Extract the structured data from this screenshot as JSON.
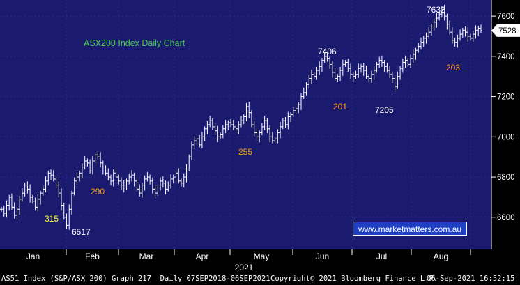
{
  "chart_data": {
    "type": "candlestick",
    "title": "ASX200 Index Daily Chart",
    "x_axis": {
      "months": [
        "Jan",
        "Feb",
        "Mar",
        "Apr",
        "May",
        "Jun",
        "Jul",
        "Aug"
      ],
      "year": "2021"
    },
    "y_axis": {
      "ticks": [
        6600,
        6800,
        7000,
        7200,
        7400,
        7600
      ],
      "range": [
        6440,
        7680
      ],
      "side": "right"
    },
    "last_price": "7528",
    "close_series": [
      6640,
      6620,
      6660,
      6700,
      6650,
      6610,
      6640,
      6690,
      6720,
      6760,
      6740,
      6700,
      6680,
      6650,
      6690,
      6720,
      6740,
      6780,
      6820,
      6810,
      6790,
      6760,
      6720,
      6660,
      6600,
      6560,
      6640,
      6720,
      6780,
      6800,
      6820,
      6850,
      6880,
      6870,
      6840,
      6880,
      6910,
      6900,
      6870,
      6840,
      6820,
      6800,
      6780,
      6820,
      6800,
      6780,
      6760,
      6750,
      6780,
      6800,
      6810,
      6780,
      6740,
      6720,
      6760,
      6790,
      6800,
      6780,
      6740,
      6720,
      6750,
      6780,
      6770,
      6740,
      6760,
      6790,
      6800,
      6820,
      6780,
      6770,
      6800,
      6840,
      6900,
      6960,
      6980,
      6990,
      6960,
      7000,
      7040,
      7060,
      7080,
      7050,
      7030,
      7000,
      7010,
      7040,
      7060,
      7070,
      7060,
      7050,
      7040,
      7060,
      7080,
      7100,
      7150,
      7120,
      7060,
      7020,
      7000,
      7020,
      7050,
      7080,
      7040,
      7000,
      6980,
      6990,
      7020,
      7050,
      7080,
      7060,
      7100,
      7110,
      7130,
      7140,
      7160,
      7200,
      7220,
      7260,
      7290,
      7310,
      7300,
      7330,
      7350,
      7380,
      7400,
      7390,
      7360,
      7320,
      7290,
      7300,
      7330,
      7360,
      7370,
      7340,
      7310,
      7300,
      7310,
      7340,
      7350,
      7330,
      7300,
      7290,
      7310,
      7330,
      7360,
      7380,
      7370,
      7350,
      7330,
      7310,
      7290,
      7250,
      7300,
      7340,
      7370,
      7380,
      7360,
      7390,
      7410,
      7430,
      7450,
      7470,
      7490,
      7500,
      7520,
      7550,
      7570,
      7590,
      7610,
      7632,
      7600,
      7560,
      7520,
      7480,
      7470,
      7490,
      7510,
      7530,
      7520,
      7500,
      7490,
      7510,
      7530,
      7540,
      7528
    ],
    "labels": [
      {
        "text": "7632",
        "value": 7632,
        "color": "#ffffff"
      },
      {
        "text": "7406",
        "value": 7406,
        "color": "#ffffff"
      },
      {
        "text": "7205",
        "value": 7205,
        "color": "#ffffff"
      },
      {
        "text": "6517",
        "value": 6517,
        "color": "#ffffff"
      },
      {
        "text": "315",
        "value": null,
        "color": "#ffff33"
      },
      {
        "text": "290",
        "value": null,
        "color": "#ff9900"
      },
      {
        "text": "255",
        "value": null,
        "color": "#ff9900"
      },
      {
        "text": "201",
        "value": null,
        "color": "#ff9900"
      },
      {
        "text": "203",
        "value": null,
        "color": "#ff9900"
      }
    ],
    "colors": {
      "background": "#1a1a6e",
      "grid": "#2a2a8e",
      "bars": "#ffffff",
      "title": "#44cc44"
    }
  },
  "watermark": "www.marketmatters.com.au",
  "footer": {
    "left": "AS51 Index (S&P/ASX 200) Graph 217  Daily 07SEP2018-06SEP2021",
    "center": "Copyright© 2021 Bloomberg Finance L.P.",
    "right": "06-Sep-2021 16:52:15"
  }
}
